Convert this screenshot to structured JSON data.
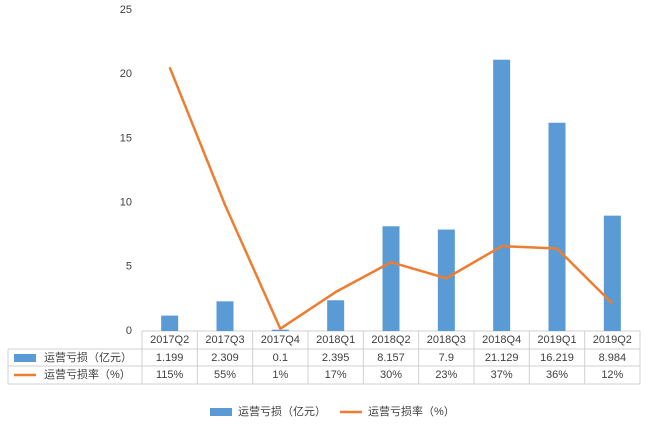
{
  "chart_data": {
    "type": "bar",
    "categories": [
      "2017Q2",
      "2017Q3",
      "2017Q4",
      "2018Q1",
      "2018Q2",
      "2018Q3",
      "2018Q4",
      "2019Q1",
      "2019Q2"
    ],
    "series": [
      {
        "name": "运营亏损（亿元）",
        "color": "#5b9bd5",
        "type": "bar",
        "values": [
          1.199,
          2.309,
          0.1,
          2.395,
          8.157,
          7.9,
          21.129,
          16.219,
          8.984
        ]
      },
      {
        "name": "运营亏损率（%）",
        "color": "#ed7d31",
        "type": "line",
        "axis": "y2",
        "values": [
          115,
          55,
          1,
          17,
          30,
          23,
          37,
          36,
          12
        ],
        "value_labels": [
          "115%",
          "55%",
          "1%",
          "17%",
          "30%",
          "23%",
          "37%",
          "36%",
          "12%"
        ]
      }
    ],
    "ylim": [
      0,
      25
    ],
    "yticks": [
      0,
      5,
      10,
      15,
      20,
      25
    ],
    "y2lim": [
      0,
      140
    ],
    "grid": false,
    "legend": "bottom"
  }
}
